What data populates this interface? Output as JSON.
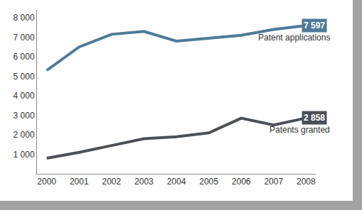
{
  "chart_data": {
    "type": "line",
    "categories": [
      "2000",
      "2001",
      "2002",
      "2003",
      "2004",
      "2005",
      "2006",
      "2007",
      "2008"
    ],
    "series": [
      {
        "name": "Patent applications",
        "color": "#4d7a97",
        "values": [
          5300,
          6500,
          7150,
          7300,
          6800,
          6950,
          7100,
          7400,
          7597
        ],
        "value_labels": [
          null,
          null,
          null,
          null,
          null,
          null,
          null,
          null,
          "7 597"
        ]
      },
      {
        "name": "Patents granted",
        "color": "#4b5056",
        "values": [
          800,
          1100,
          1450,
          1800,
          1900,
          2100,
          2850,
          2500,
          2858
        ],
        "value_labels": [
          null,
          null,
          null,
          null,
          null,
          null,
          null,
          null,
          "2 858"
        ]
      }
    ],
    "ylim": [
      0,
      8400
    ],
    "yticks": [
      {
        "value": 1000,
        "label": "1 000"
      },
      {
        "value": 2000,
        "label": "2 000"
      },
      {
        "value": 3000,
        "label": "3 000"
      },
      {
        "value": 4000,
        "label": "4 000"
      },
      {
        "value": 5000,
        "label": "5 000"
      },
      {
        "value": 6000,
        "label": "6 000"
      },
      {
        "value": 7000,
        "label": "7 000"
      },
      {
        "value": 8000,
        "label": "8 000"
      }
    ],
    "grid": false,
    "data_labels": true
  }
}
